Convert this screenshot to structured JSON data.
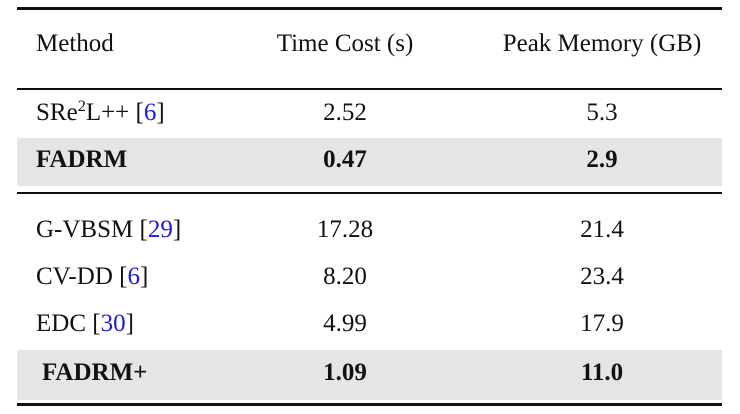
{
  "table": {
    "headers": [
      "Method",
      "Time Cost (s)",
      "Peak Memory (GB)"
    ],
    "group1": [
      {
        "method_prefix": "SRe",
        "method_sup": "2",
        "method_suffix": "L++",
        "ref": "6",
        "time": "2.52",
        "memory": "5.3",
        "bold": false,
        "shaded": false
      },
      {
        "method": "FADRM",
        "time": "0.47",
        "memory": "2.9",
        "bold": true,
        "shaded": true
      }
    ],
    "group2": [
      {
        "method": "G-VBSM",
        "ref": "29",
        "time": "17.28",
        "memory": "21.4",
        "bold": false,
        "shaded": false
      },
      {
        "method": "CV-DD",
        "ref": "6",
        "time": "8.20",
        "memory": "23.4",
        "bold": false,
        "shaded": false
      },
      {
        "method": "EDC",
        "ref": "30",
        "time": "4.99",
        "memory": "17.9",
        "bold": false,
        "shaded": false
      },
      {
        "method": "FADRM+",
        "time": "1.09",
        "memory": "11.0",
        "bold": true,
        "shaded": true
      }
    ]
  },
  "colors": {
    "shade": "#e5e5e5",
    "citation": "#1a1adb",
    "rule": "#111111"
  }
}
